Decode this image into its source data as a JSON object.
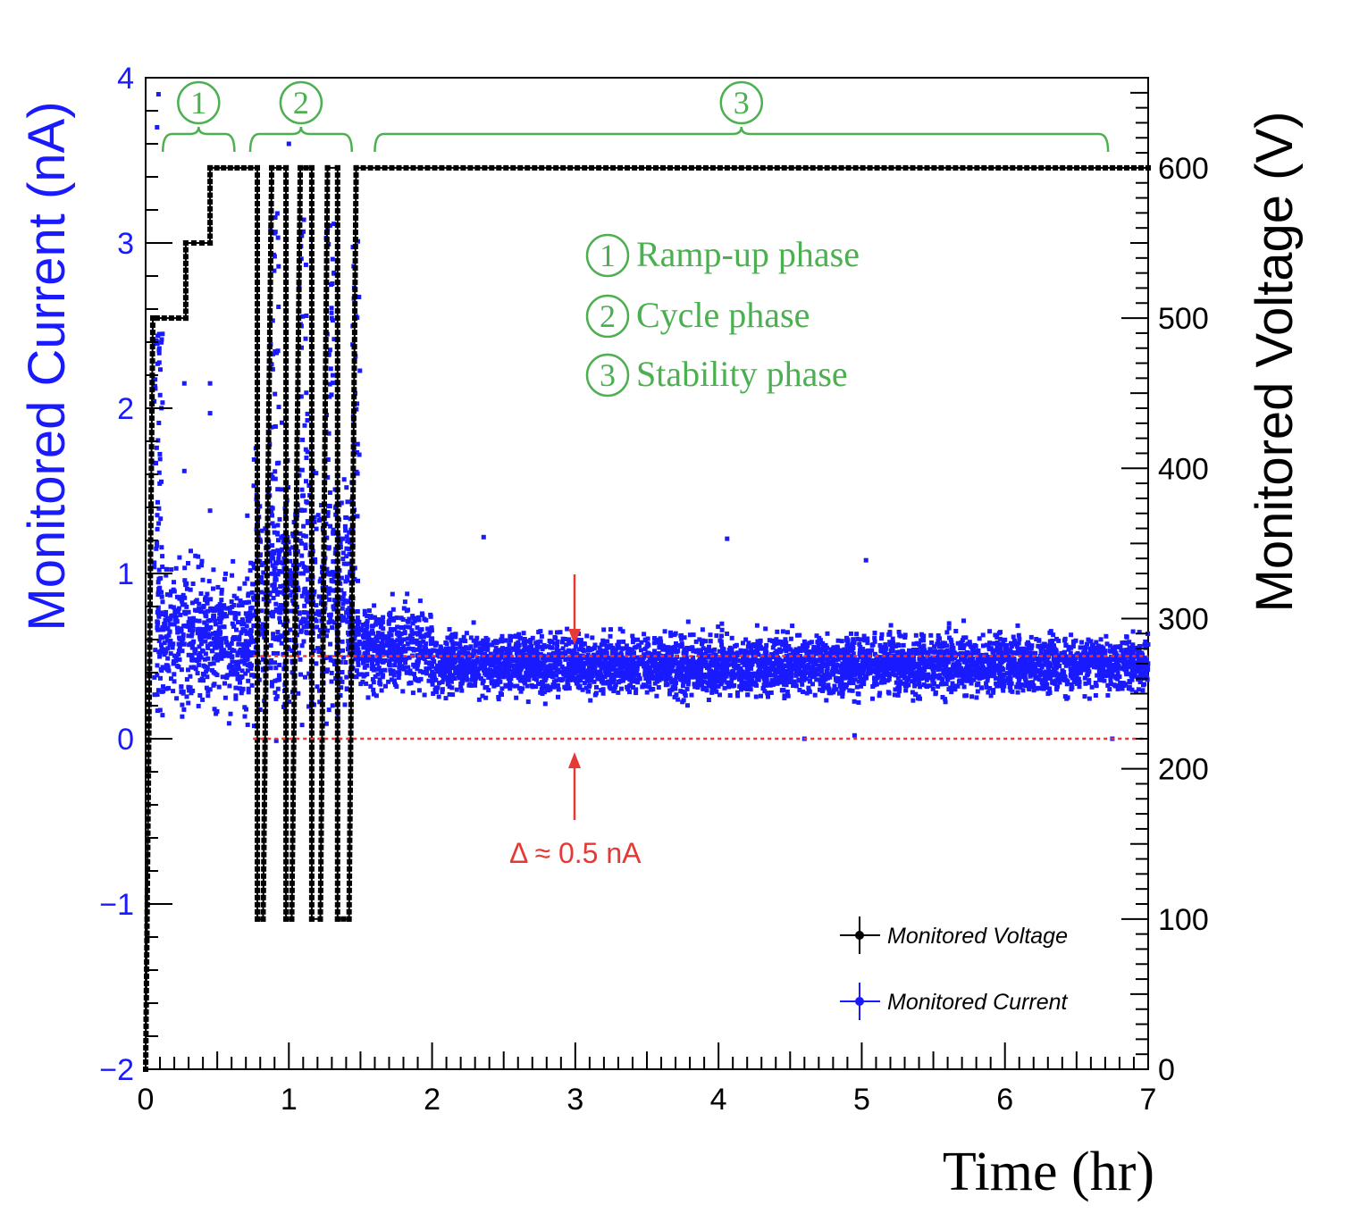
{
  "colors": {
    "current": "#1a1aff",
    "voltage": "#000000",
    "phase": "#4caf50",
    "delta": "#e53935"
  },
  "chart_data": {
    "type": "scatter",
    "xlabel": "Time (hr)",
    "ylabel_left": "Monitored Current (nA)",
    "ylabel_right": "Monitored Voltage (V)",
    "xlim": [
      0,
      7
    ],
    "ylim_left": [
      -2,
      4
    ],
    "ylim_right": [
      0,
      660
    ],
    "x_ticks": [
      "0",
      "1",
      "2",
      "3",
      "4",
      "5",
      "6",
      "7"
    ],
    "y_left_ticks": [
      "−2",
      "−1",
      "0",
      "1",
      "2",
      "3",
      "4"
    ],
    "y_right_ticks": [
      "0",
      "100",
      "200",
      "300",
      "400",
      "500",
      "600"
    ],
    "series": [
      {
        "name": "Monitored Voltage",
        "axis": "right",
        "steps": [
          {
            "x": [
              0.0,
              0.05
            ],
            "y": [
              0,
              500
            ]
          },
          {
            "x": [
              0.08,
              0.28
            ],
            "y": 500
          },
          {
            "x": [
              0.28,
              0.45
            ],
            "y": 550
          },
          {
            "x": [
              0.45,
              0.78
            ],
            "y": 600
          },
          {
            "x": [
              0.78,
              0.82
            ],
            "y": 100
          },
          {
            "x": [
              0.88,
              0.98
            ],
            "y": 600
          },
          {
            "x": [
              0.98,
              1.02
            ],
            "y": 100
          },
          {
            "x": [
              1.08,
              1.16
            ],
            "y": 600
          },
          {
            "x": [
              1.16,
              1.22
            ],
            "y": 100
          },
          {
            "x": [
              1.27,
              1.34
            ],
            "y": 600
          },
          {
            "x": [
              1.34,
              1.42
            ],
            "y": 100
          },
          {
            "x": [
              1.47,
              7.0
            ],
            "y": 600
          }
        ]
      },
      {
        "name": "Monitored Current",
        "axis": "left",
        "segments": [
          {
            "x": [
              0.08,
              0.75
            ],
            "mean": 0.6,
            "spread": 0.35
          },
          {
            "x": [
              0.75,
              1.45
            ],
            "mean": 0.9,
            "spread": 0.6
          },
          {
            "x": [
              1.45,
              2.0
            ],
            "mean": 0.55,
            "spread": 0.2
          },
          {
            "x": [
              2.0,
              7.0
            ],
            "mean": 0.45,
            "spread": 0.15
          }
        ],
        "outliers": [
          {
            "x": 0.09,
            "y": 3.9
          },
          {
            "x": 0.08,
            "y": 3.7
          },
          {
            "x": 0.27,
            "y": 2.15
          },
          {
            "x": 0.45,
            "y": 2.15
          },
          {
            "x": 0.45,
            "y": 1.97
          },
          {
            "x": 0.27,
            "y": 1.62
          },
          {
            "x": 0.45,
            "y": 1.38
          },
          {
            "x": 0.71,
            "y": 1.35
          },
          {
            "x": 1.0,
            "y": 3.6
          },
          {
            "x": 2.36,
            "y": 1.22
          },
          {
            "x": 4.06,
            "y": 1.21
          },
          {
            "x": 5.03,
            "y": 1.08
          },
          {
            "x": 4.6,
            "y": 0.0
          },
          {
            "x": 4.95,
            "y": 0.02
          },
          {
            "x": 6.75,
            "y": 0.0
          }
        ]
      }
    ],
    "phases": [
      {
        "num": "1",
        "x": [
          0.12,
          0.62
        ]
      },
      {
        "num": "2",
        "x": [
          0.73,
          1.44
        ]
      },
      {
        "num": "3",
        "x": [
          1.6,
          6.72
        ]
      }
    ],
    "phase_legend": [
      "Ramp-up phase",
      "Cycle phase",
      "Stability phase"
    ],
    "reference_lines": [
      0.5,
      0.0
    ],
    "annotation": {
      "text": "Δ ≈  0.5 nA",
      "x": 3.0
    },
    "legend": [
      "Monitored Voltage",
      "Monitored Current"
    ]
  }
}
